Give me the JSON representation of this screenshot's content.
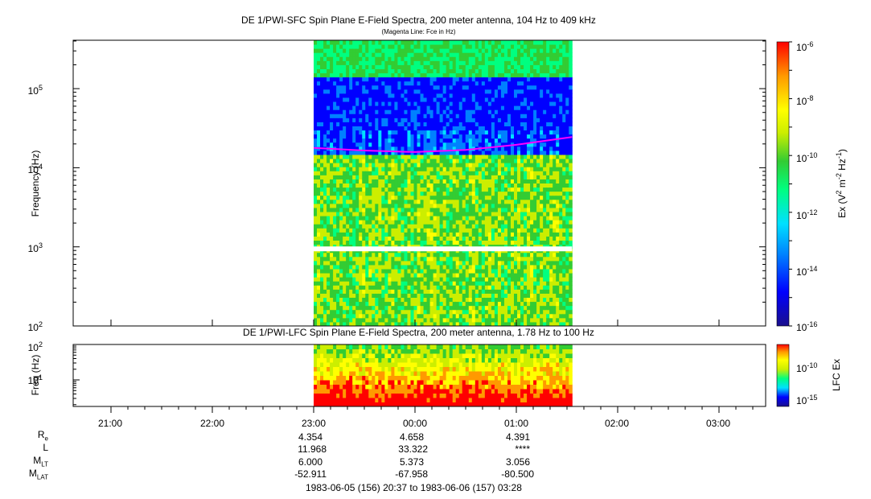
{
  "chart_data": [
    {
      "type": "heatmap",
      "title": "DE 1/PWI-SFC  Spin Plane E-Field Spectra, 200 meter antenna, 104 Hz to 409 kHz",
      "subtitle": "(Magenta Line: Fce in Hz)",
      "ylabel": "Frequency (Hz)",
      "yscale": "log",
      "ylim": [
        100,
        409000
      ],
      "ytick_labels": [
        {
          "mant": "10",
          "exp": "2",
          "value": 100
        },
        {
          "mant": "10",
          "exp": "3",
          "value": 1000
        },
        {
          "mant": "10",
          "exp": "4",
          "value": 10000
        },
        {
          "mant": "10",
          "exp": "5",
          "value": 100000
        }
      ],
      "data_time_range": [
        "23:00",
        "01:33"
      ],
      "fce_line": {
        "name": "Fce",
        "color": "#ff00ff",
        "x": [
          "23:00",
          "23:30",
          "00:00",
          "00:30",
          "01:00",
          "01:33"
        ],
        "y": [
          17800,
          16500,
          15800,
          16800,
          19500,
          24500
        ]
      },
      "colorbar": {
        "label_base": "Ex (V",
        "label_exp1": "2",
        "label_mid": " m",
        "label_exp2": "-2",
        "label_mid2": " Hz",
        "label_exp3": "-1",
        "label_end": ")",
        "scale": "log",
        "range": [
          1e-16,
          1e-06
        ],
        "tick_labels": [
          {
            "mant": "10",
            "exp": "-6"
          },
          {
            "mant": "10",
            "exp": "-8"
          },
          {
            "mant": "10",
            "exp": "-10"
          },
          {
            "mant": "10",
            "exp": "-12"
          },
          {
            "mant": "10",
            "exp": "-14"
          },
          {
            "mant": "10",
            "exp": "-16"
          }
        ]
      }
    },
    {
      "type": "heatmap",
      "title": "DE 1/PWI-LFC  Spin Plane E-Field Spectra, 200 meter antenna, 1.78 Hz to 100 Hz",
      "ylabel": "Freq (Hz)",
      "yscale": "log",
      "ylim": [
        1.78,
        100
      ],
      "ytick_labels": [
        {
          "mant": "10",
          "exp": "1",
          "value": 10
        },
        {
          "mant": "10",
          "exp": "2",
          "value": 100
        }
      ],
      "data_time_range": [
        "23:00",
        "01:33"
      ],
      "colorbar": {
        "label": "LFC Ex",
        "scale": "log",
        "tick_labels": [
          {
            "mant": "10",
            "exp": "-10"
          },
          {
            "mant": "10",
            "exp": "-15"
          }
        ]
      }
    }
  ],
  "time_axis": {
    "ticks": [
      "21:00",
      "22:00",
      "23:00",
      "00:00",
      "01:00",
      "02:00",
      "03:00"
    ]
  },
  "ephemeris": {
    "rows": [
      {
        "label_main": "R",
        "label_sub": "e",
        "values": [
          "4.354",
          "4.658",
          "4.391"
        ]
      },
      {
        "label_main": "L",
        "label_sub": "",
        "values": [
          "11.968",
          "33.322",
          "****"
        ]
      },
      {
        "label_main": "M",
        "label_sub": "LT",
        "values": [
          "6.000",
          "5.373",
          "3.056"
        ]
      },
      {
        "label_main": "M",
        "label_sub": "LAT",
        "values": [
          "-52.911",
          "-67.958",
          "-80.500"
        ]
      }
    ],
    "time_range": "1983-06-05 (156) 20:37 to 1983-06-06 (157) 03:28"
  },
  "colors": {
    "fce_line": "#ff00ff",
    "colormap": [
      "#1a0f8c",
      "#0000ff",
      "#0080ff",
      "#00e0ff",
      "#00ff80",
      "#33cc33",
      "#ccee00",
      "#ffff00",
      "#ff9900",
      "#ff0000"
    ]
  }
}
